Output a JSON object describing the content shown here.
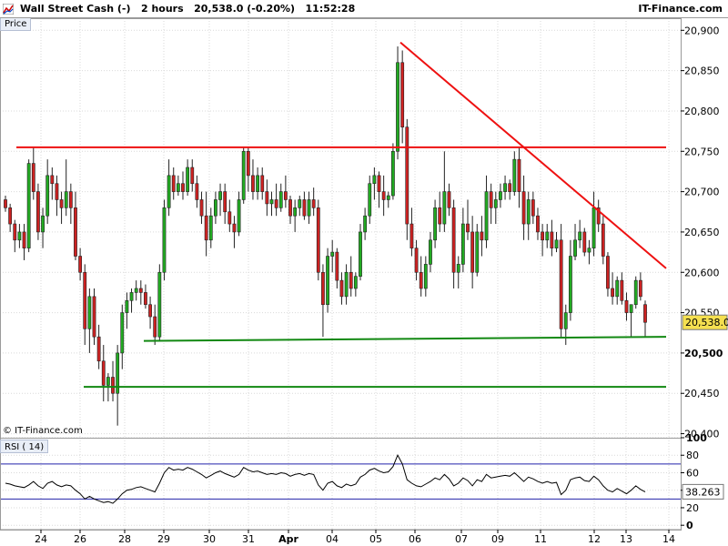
{
  "header": {
    "title": "Wall Street Cash (-)   2 hours   20,538.0 (-0.20%)   11:52:28",
    "brand": "IT-Finance.com"
  },
  "labels": {
    "price_tab": "Price",
    "rsi_tab": "RSI ( 14)",
    "copyright": "© IT-Finance.com"
  },
  "colors": {
    "bull": "#22aa22",
    "bear": "#cc2222",
    "resistance": "#ee1111",
    "support": "#118811",
    "rsi_line": "#000000",
    "rsi_bands": "#2222aa",
    "grid": "#d9d9d9",
    "badge": "#f5e050"
  },
  "chart_data": [
    {
      "type": "candlestick",
      "title": "Wall Street Cash (-)",
      "timeframe": "2 hours",
      "last_price": 20538.0,
      "last_price_label": "20,538.0",
      "change_label": "(-0.20%)",
      "ylim": [
        20395,
        20915
      ],
      "yticks": [
        20400,
        20450,
        20500,
        20550,
        20600,
        20650,
        20700,
        20750,
        20800,
        20850,
        20900
      ],
      "ytick_labels": [
        "20,400",
        "20,450",
        "20,500",
        "20,550",
        "20,600",
        "20,650",
        "20,700",
        "20,750",
        "20,800",
        "20,850",
        "20,900"
      ],
      "xticks": [
        "24",
        "26",
        "28",
        "29",
        "30",
        "31",
        "Apr",
        "04",
        "05",
        "06",
        "07",
        "09",
        "11",
        "12",
        "13",
        "14"
      ],
      "candles": [
        [
          20690,
          20695,
          20675,
          20680
        ],
        [
          20680,
          20685,
          20650,
          20660
        ],
        [
          20660,
          20665,
          20625,
          20640
        ],
        [
          20640,
          20660,
          20630,
          20650
        ],
        [
          20650,
          20660,
          20615,
          20630
        ],
        [
          20630,
          20740,
          20625,
          20735
        ],
        [
          20735,
          20755,
          20690,
          20700
        ],
        [
          20700,
          20710,
          20640,
          20650
        ],
        [
          20650,
          20680,
          20630,
          20670
        ],
        [
          20670,
          20740,
          20660,
          20720
        ],
        [
          20720,
          20730,
          20690,
          20710
        ],
        [
          20710,
          20720,
          20670,
          20690
        ],
        [
          20690,
          20700,
          20660,
          20680
        ],
        [
          20680,
          20740,
          20670,
          20700
        ],
        [
          20700,
          20710,
          20660,
          20680
        ],
        [
          20680,
          20700,
          20615,
          20620
        ],
        [
          20620,
          20630,
          20590,
          20600
        ],
        [
          20600,
          20610,
          20510,
          20530
        ],
        [
          20530,
          20580,
          20500,
          20570
        ],
        [
          20570,
          20580,
          20510,
          20520
        ],
        [
          20520,
          20535,
          20480,
          20490
        ],
        [
          20490,
          20510,
          20440,
          20460
        ],
        [
          20460,
          20475,
          20440,
          20470
        ],
        [
          20470,
          20490,
          20440,
          20450
        ],
        [
          20450,
          20510,
          20410,
          20500
        ],
        [
          20500,
          20560,
          20480,
          20550
        ],
        [
          20550,
          20575,
          20530,
          20565
        ],
        [
          20565,
          20580,
          20550,
          20575
        ],
        [
          20575,
          20590,
          20565,
          20580
        ],
        [
          20580,
          20590,
          20560,
          20575
        ],
        [
          20575,
          20585,
          20555,
          20560
        ],
        [
          20560,
          20570,
          20530,
          20545
        ],
        [
          20545,
          20560,
          20510,
          20520
        ],
        [
          20520,
          20610,
          20515,
          20600
        ],
        [
          20600,
          20690,
          20590,
          20680
        ],
        [
          20680,
          20740,
          20670,
          20720
        ],
        [
          20720,
          20730,
          20690,
          20700
        ],
        [
          20700,
          20720,
          20695,
          20710
        ],
        [
          20710,
          20725,
          20690,
          20700
        ],
        [
          20700,
          20740,
          20695,
          20730
        ],
        [
          20730,
          20740,
          20700,
          20710
        ],
        [
          20710,
          20720,
          20680,
          20690
        ],
        [
          20690,
          20700,
          20660,
          20670
        ],
        [
          20670,
          20700,
          20620,
          20640
        ],
        [
          20640,
          20680,
          20630,
          20670
        ],
        [
          20670,
          20700,
          20660,
          20690
        ],
        [
          20690,
          20710,
          20670,
          20700
        ],
        [
          20700,
          20710,
          20660,
          20675
        ],
        [
          20675,
          20690,
          20650,
          20660
        ],
        [
          20660,
          20670,
          20630,
          20650
        ],
        [
          20650,
          20700,
          20645,
          20690
        ],
        [
          20690,
          20755,
          20685,
          20750
        ],
        [
          20750,
          20755,
          20700,
          20720
        ],
        [
          20720,
          20740,
          20690,
          20700
        ],
        [
          20700,
          20730,
          20690,
          20720
        ],
        [
          20720,
          20730,
          20690,
          20700
        ],
        [
          20700,
          20715,
          20670,
          20685
        ],
        [
          20685,
          20700,
          20670,
          20690
        ],
        [
          20690,
          20710,
          20670,
          20680
        ],
        [
          20680,
          20710,
          20675,
          20700
        ],
        [
          20700,
          20720,
          20680,
          20690
        ],
        [
          20690,
          20695,
          20660,
          20670
        ],
        [
          20670,
          20690,
          20650,
          20680
        ],
        [
          20680,
          20695,
          20670,
          20690
        ],
        [
          20690,
          20700,
          20665,
          20670
        ],
        [
          20670,
          20700,
          20660,
          20690
        ],
        [
          20690,
          20705,
          20670,
          20680
        ],
        [
          20680,
          20690,
          20590,
          20600
        ],
        [
          20600,
          20610,
          20520,
          20560
        ],
        [
          20560,
          20630,
          20550,
          20620
        ],
        [
          20620,
          20640,
          20600,
          20625
        ],
        [
          20625,
          20630,
          20580,
          20590
        ],
        [
          20590,
          20600,
          20560,
          20570
        ],
        [
          20570,
          20610,
          20560,
          20600
        ],
        [
          20600,
          20620,
          20570,
          20580
        ],
        [
          20580,
          20600,
          20570,
          20595
        ],
        [
          20595,
          20660,
          20590,
          20650
        ],
        [
          20650,
          20680,
          20640,
          20670
        ],
        [
          20670,
          20720,
          20660,
          20710
        ],
        [
          20710,
          20730,
          20690,
          20720
        ],
        [
          20720,
          20725,
          20680,
          20700
        ],
        [
          20700,
          20720,
          20670,
          20690
        ],
        [
          20690,
          20700,
          20680,
          20695
        ],
        [
          20695,
          20760,
          20690,
          20750
        ],
        [
          20750,
          20880,
          20740,
          20860
        ],
        [
          20860,
          20875,
          20760,
          20780
        ],
        [
          20780,
          20790,
          20640,
          20660
        ],
        [
          20660,
          20680,
          20620,
          20630
        ],
        [
          20630,
          20640,
          20590,
          20600
        ],
        [
          20600,
          20620,
          20570,
          20580
        ],
        [
          20580,
          20620,
          20570,
          20610
        ],
        [
          20610,
          20650,
          20600,
          20640
        ],
        [
          20640,
          20690,
          20630,
          20680
        ],
        [
          20680,
          20700,
          20650,
          20660
        ],
        [
          20660,
          20750,
          20650,
          20700
        ],
        [
          20700,
          20710,
          20670,
          20680
        ],
        [
          20680,
          20690,
          20580,
          20600
        ],
        [
          20600,
          20620,
          20580,
          20610
        ],
        [
          20610,
          20680,
          20600,
          20660
        ],
        [
          20660,
          20690,
          20640,
          20650
        ],
        [
          20650,
          20670,
          20580,
          20600
        ],
        [
          20600,
          20660,
          20595,
          20650
        ],
        [
          20650,
          20670,
          20620,
          20640
        ],
        [
          20640,
          20720,
          20630,
          20700
        ],
        [
          20700,
          20710,
          20660,
          20680
        ],
        [
          20680,
          20700,
          20660,
          20690
        ],
        [
          20690,
          20710,
          20680,
          20700
        ],
        [
          20700,
          20720,
          20690,
          20710
        ],
        [
          20710,
          20715,
          20690,
          20700
        ],
        [
          20700,
          20750,
          20695,
          20740
        ],
        [
          20740,
          20755,
          20680,
          20700
        ],
        [
          20700,
          20720,
          20640,
          20660
        ],
        [
          20660,
          20700,
          20640,
          20690
        ],
        [
          20690,
          20700,
          20660,
          20670
        ],
        [
          20670,
          20680,
          20640,
          20650
        ],
        [
          20650,
          20660,
          20620,
          20640
        ],
        [
          20640,
          20660,
          20630,
          20650
        ],
        [
          20650,
          20665,
          20620,
          20630
        ],
        [
          20630,
          20650,
          20625,
          20640
        ],
        [
          20640,
          20660,
          20520,
          20530
        ],
        [
          20530,
          20560,
          20510,
          20550
        ],
        [
          20550,
          20640,
          20540,
          20620
        ],
        [
          20620,
          20660,
          20615,
          20640
        ],
        [
          20640,
          20665,
          20630,
          20650
        ],
        [
          20650,
          20655,
          20620,
          20625
        ],
        [
          20625,
          20640,
          20610,
          20630
        ],
        [
          20630,
          20700,
          20620,
          20680
        ],
        [
          20680,
          20690,
          20650,
          20660
        ],
        [
          20660,
          20670,
          20610,
          20620
        ],
        [
          20620,
          20625,
          20570,
          20580
        ],
        [
          20580,
          20600,
          20560,
          20570
        ],
        [
          20570,
          20595,
          20560,
          20590
        ],
        [
          20590,
          20600,
          20560,
          20565
        ],
        [
          20565,
          20575,
          20540,
          20550
        ],
        [
          20550,
          20560,
          20520,
          20560
        ],
        [
          20560,
          20595,
          20555,
          20590
        ],
        [
          20590,
          20600,
          20565,
          20570
        ],
        [
          20560,
          20565,
          20520,
          20538
        ]
      ],
      "lines": [
        {
          "name": "resistance",
          "style": "red",
          "points": [
            [
              "24",
              20755
            ],
            [
              "14",
              20755
            ]
          ]
        },
        {
          "name": "trendline",
          "style": "red",
          "points": [
            [
              "05",
              20885
            ],
            [
              "14",
              20605
            ]
          ]
        },
        {
          "name": "support-upper",
          "style": "green",
          "points": [
            [
              "29",
              20515
            ],
            [
              "14",
              20520
            ]
          ]
        },
        {
          "name": "support-lower",
          "style": "green",
          "points": [
            [
              "26",
              20458
            ],
            [
              "14",
              20458
            ]
          ]
        }
      ]
    },
    {
      "type": "line",
      "title": "RSI ( 14)",
      "ylim": [
        -5,
        100
      ],
      "yticks": [
        0,
        20,
        40,
        60,
        80,
        100
      ],
      "ytick_labels": [
        "0",
        "20",
        "40",
        "60",
        "80",
        "100"
      ],
      "bands": [
        30,
        70
      ],
      "last_value": 38.263,
      "last_value_label": "38.263",
      "values": [
        48,
        47,
        45,
        44,
        43,
        46,
        50,
        45,
        42,
        48,
        50,
        46,
        44,
        46,
        45,
        40,
        36,
        30,
        33,
        30,
        28,
        26,
        27,
        25,
        30,
        36,
        40,
        41,
        43,
        44,
        42,
        40,
        38,
        48,
        60,
        66,
        63,
        64,
        63,
        66,
        64,
        61,
        58,
        54,
        57,
        60,
        62,
        59,
        57,
        55,
        58,
        66,
        63,
        61,
        62,
        60,
        58,
        59,
        58,
        60,
        59,
        56,
        58,
        59,
        57,
        59,
        58,
        46,
        40,
        48,
        50,
        45,
        43,
        47,
        45,
        47,
        55,
        58,
        63,
        65,
        62,
        60,
        61,
        67,
        80,
        70,
        52,
        48,
        45,
        44,
        47,
        50,
        54,
        52,
        58,
        53,
        45,
        48,
        54,
        51,
        45,
        52,
        50,
        58,
        54,
        55,
        56,
        57,
        56,
        60,
        55,
        50,
        55,
        53,
        50,
        48,
        50,
        48,
        49,
        35,
        40,
        52,
        54,
        55,
        51,
        50,
        56,
        52,
        45,
        40,
        38,
        42,
        39,
        36,
        40,
        45,
        41,
        38
      ]
    }
  ]
}
